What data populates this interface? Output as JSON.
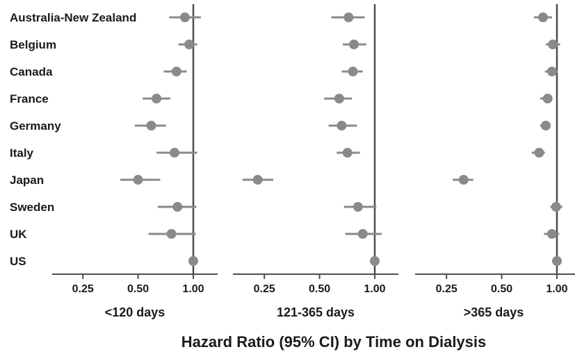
{
  "chart_data": {
    "type": "forest",
    "title": "Hazard Ratio (95% CI) by Time on Dialysis",
    "countries": [
      "Australia-New Zealand",
      "Belgium",
      "Canada",
      "France",
      "Germany",
      "Italy",
      "Japan",
      "Sweden",
      "UK",
      "US"
    ],
    "x_scale": "log2",
    "xlim": [
      0.17,
      1.13
    ],
    "ticks": [
      {
        "value": 0.25,
        "label": "0.25"
      },
      {
        "value": 0.5,
        "label": "0.50"
      },
      {
        "value": 1.0,
        "label": "1.00"
      }
    ],
    "reference_line": 1.0,
    "panels": [
      {
        "label": "<120 days",
        "points": [
          {
            "hr": 0.9,
            "lo": 0.74,
            "hi": 1.1
          },
          {
            "hr": 0.95,
            "lo": 0.83,
            "hi": 1.05
          },
          {
            "hr": 0.81,
            "lo": 0.69,
            "hi": 0.92
          },
          {
            "hr": 0.63,
            "lo": 0.53,
            "hi": 0.75
          },
          {
            "hr": 0.59,
            "lo": 0.48,
            "hi": 0.71
          },
          {
            "hr": 0.79,
            "lo": 0.63,
            "hi": 1.05
          },
          {
            "hr": 0.5,
            "lo": 0.4,
            "hi": 0.66
          },
          {
            "hr": 0.82,
            "lo": 0.64,
            "hi": 1.04
          },
          {
            "hr": 0.76,
            "lo": 0.57,
            "hi": 1.03
          },
          {
            "hr": 1.0,
            "lo": null,
            "hi": null
          }
        ]
      },
      {
        "label": "121-365 days",
        "points": [
          {
            "hr": 0.72,
            "lo": 0.58,
            "hi": 0.88
          },
          {
            "hr": 0.77,
            "lo": 0.67,
            "hi": 0.9
          },
          {
            "hr": 0.76,
            "lo": 0.66,
            "hi": 0.86
          },
          {
            "hr": 0.64,
            "lo": 0.53,
            "hi": 0.75
          },
          {
            "hr": 0.66,
            "lo": 0.56,
            "hi": 0.8
          },
          {
            "hr": 0.71,
            "lo": 0.62,
            "hi": 0.83
          },
          {
            "hr": 0.23,
            "lo": 0.19,
            "hi": 0.28
          },
          {
            "hr": 0.81,
            "lo": 0.68,
            "hi": 1.02
          },
          {
            "hr": 0.86,
            "lo": 0.69,
            "hi": 1.09
          },
          {
            "hr": 1.0,
            "lo": null,
            "hi": null
          }
        ]
      },
      {
        "label": ">365 days",
        "points": [
          {
            "hr": 0.84,
            "lo": 0.75,
            "hi": 0.94
          },
          {
            "hr": 0.95,
            "lo": 0.87,
            "hi": 1.04
          },
          {
            "hr": 0.94,
            "lo": 0.86,
            "hi": 1.01
          },
          {
            "hr": 0.89,
            "lo": 0.81,
            "hi": 0.94
          },
          {
            "hr": 0.87,
            "lo": 0.81,
            "hi": 0.92
          },
          {
            "hr": 0.8,
            "lo": 0.73,
            "hi": 0.86
          },
          {
            "hr": 0.31,
            "lo": 0.27,
            "hi": 0.35
          },
          {
            "hr": 0.99,
            "lo": 0.92,
            "hi": 1.07
          },
          {
            "hr": 0.94,
            "lo": 0.85,
            "hi": 1.03
          },
          {
            "hr": 1.0,
            "lo": null,
            "hi": null
          }
        ]
      }
    ],
    "colors": {
      "marker": "#8a8a8a",
      "ci": "#8a8a8a",
      "axis": "#4d4d4d",
      "text": "#1a1a1a"
    }
  }
}
